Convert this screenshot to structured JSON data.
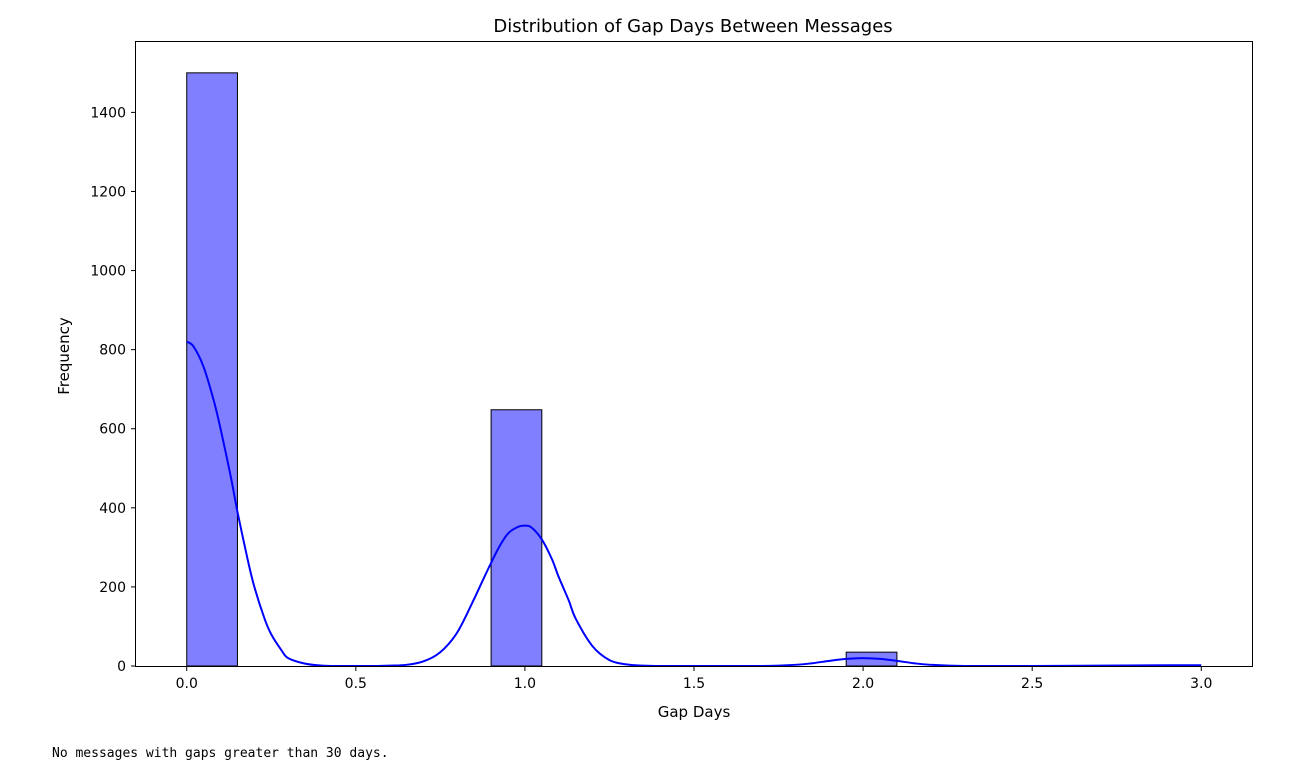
{
  "chart_data": {
    "type": "bar",
    "title": "Distribution of Gap Days Between Messages",
    "xlabel": "Gap Days",
    "ylabel": "Frequency",
    "xlim": [
      -0.15,
      3.15
    ],
    "ylim": [
      0,
      1578
    ],
    "xticks": [
      0.0,
      0.5,
      1.0,
      1.5,
      2.0,
      2.5,
      3.0
    ],
    "xtick_labels": [
      "0.0",
      "0.5",
      "1.0",
      "1.5",
      "2.0",
      "2.5",
      "3.0"
    ],
    "yticks": [
      0,
      200,
      400,
      600,
      800,
      1000,
      1200,
      1400
    ],
    "ytick_labels": [
      "0",
      "200",
      "400",
      "600",
      "800",
      "1000",
      "1200",
      "1400"
    ],
    "bins": [
      {
        "x0": 0.0,
        "x1": 0.15,
        "value": 1500
      },
      {
        "x0": 0.9,
        "x1": 1.05,
        "value": 648
      },
      {
        "x0": 1.95,
        "x1": 2.1,
        "value": 35
      }
    ],
    "kde": {
      "x": [
        0.0,
        0.02,
        0.05,
        0.08,
        0.1,
        0.13,
        0.15,
        0.18,
        0.2,
        0.23,
        0.25,
        0.28,
        0.3,
        0.35,
        0.4,
        0.45,
        0.5,
        0.55,
        0.6,
        0.65,
        0.7,
        0.75,
        0.8,
        0.85,
        0.88,
        0.92,
        0.95,
        0.98,
        1.0,
        1.02,
        1.05,
        1.08,
        1.1,
        1.13,
        1.15,
        1.2,
        1.25,
        1.3,
        1.35,
        1.4,
        1.5,
        1.6,
        1.7,
        1.8,
        1.85,
        1.9,
        1.95,
        2.0,
        2.05,
        2.1,
        2.15,
        2.2,
        2.3,
        2.5,
        2.7,
        2.9,
        3.0
      ],
      "y": [
        820,
        808,
        756,
        671,
        600,
        480,
        390,
        270,
        200,
        120,
        80,
        40,
        20,
        6,
        1,
        0,
        0,
        0,
        1,
        3,
        12,
        35,
        85,
        170,
        225,
        295,
        335,
        352,
        355,
        350,
        320,
        270,
        225,
        165,
        120,
        50,
        15,
        4,
        1,
        0,
        0,
        0,
        0,
        3,
        7,
        13,
        18,
        20,
        18,
        13,
        7,
        3,
        0,
        0,
        1,
        2,
        2
      ]
    },
    "colors": {
      "bar_fill": "#7f7fff",
      "bar_edge": "#000000",
      "kde_line": "#0000ff"
    },
    "grid": false,
    "legend": "none"
  },
  "output": {
    "message": "No messages with gaps greater than 30 days."
  }
}
